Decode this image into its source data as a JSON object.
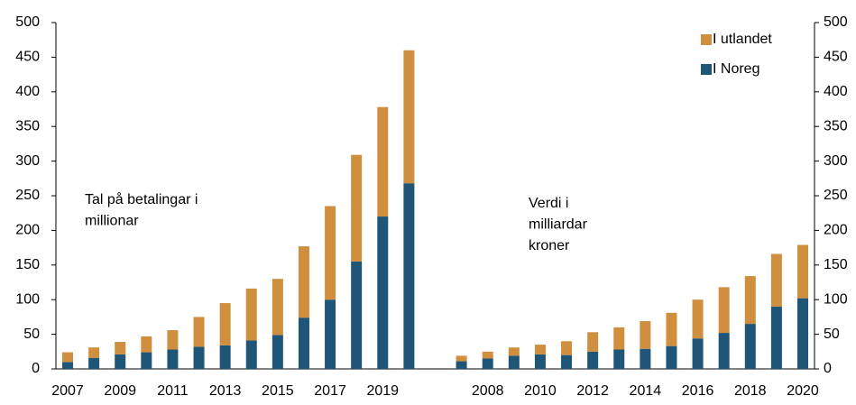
{
  "chart_data": {
    "type": "stacked_bar",
    "categories": [
      "2007",
      null,
      "2009",
      null,
      "2011",
      null,
      "2013",
      null,
      "2015",
      null,
      "2017",
      null,
      "2019",
      null,
      null,
      null,
      "2008",
      null,
      "2010",
      null,
      "2012",
      null,
      "2014",
      null,
      "2016",
      null,
      "2018",
      null,
      "2020"
    ],
    "series": [
      {
        "name": "I Noreg",
        "color": "#1f5577",
        "values": [
          10,
          16,
          21,
          24,
          28,
          32,
          34,
          41,
          49,
          74,
          100,
          155,
          220,
          268,
          null,
          11,
          15,
          19,
          21,
          20,
          25,
          28,
          29,
          33,
          44,
          52,
          65,
          90,
          102
        ]
      },
      {
        "name": "I utlandet",
        "color": "#d08f3f",
        "values": [
          14,
          15,
          18,
          23,
          28,
          43,
          61,
          75,
          81,
          103,
          135,
          154,
          158,
          192,
          null,
          8,
          10,
          12,
          14,
          20,
          28,
          32,
          40,
          48,
          56,
          66,
          69,
          76,
          77
        ]
      }
    ],
    "annotations": [
      [
        "Tal på betalingar i",
        "millionar"
      ],
      [
        "Verdi i",
        "milliardar",
        "kroner"
      ]
    ],
    "ylim": [
      0,
      500
    ],
    "yticks": [
      0,
      50,
      100,
      150,
      200,
      250,
      300,
      350,
      400,
      450,
      500
    ],
    "y2lim": [
      0,
      500
    ],
    "y2ticks": [
      0,
      50,
      100,
      150,
      200,
      250,
      300,
      350,
      400,
      450,
      500
    ],
    "legend": "top-right",
    "grid": false
  }
}
